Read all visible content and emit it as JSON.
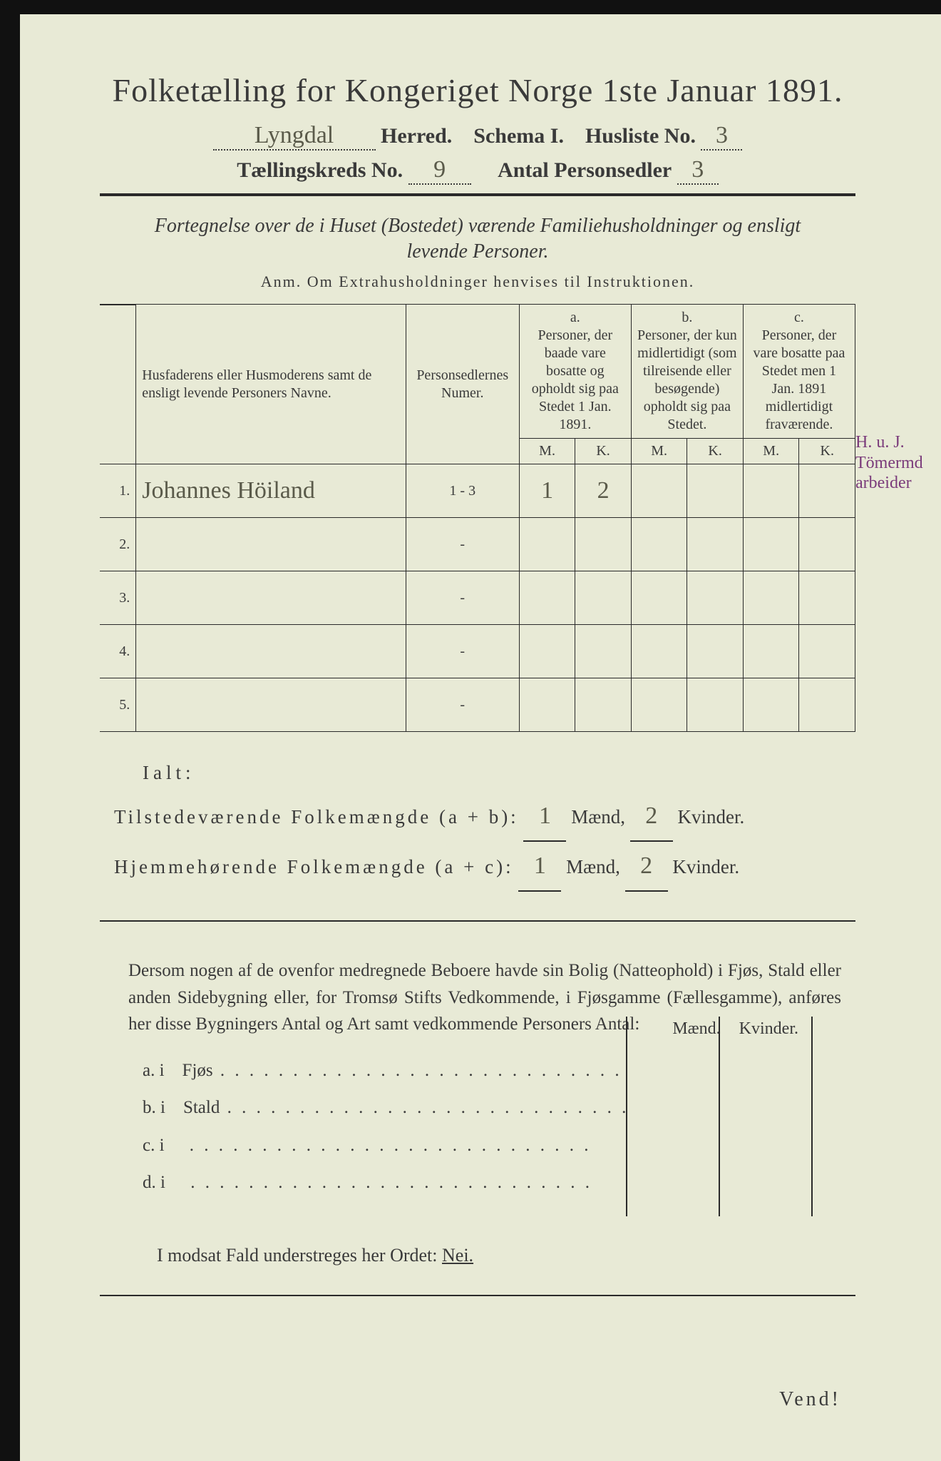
{
  "title": "Folketælling for Kongeriget Norge 1ste Januar 1891.",
  "header": {
    "herred_value": "Lyngdal",
    "herred_label": "Herred.",
    "schema_label": "Schema I.",
    "husliste_label": "Husliste No.",
    "husliste_value": "3",
    "kreds_label": "Tællingskreds No.",
    "kreds_value": "9",
    "antal_label": "Antal Personsedler",
    "antal_value": "3"
  },
  "subtitle": "Fortegnelse over de i Huset (Bostedet) værende Familiehusholdninger og ensligt levende Personer.",
  "anm": "Anm. Om Extrahusholdninger henvises til Instruktionen.",
  "columns": {
    "name_head": "Husfaderens eller Husmoderens samt de ensligt levende Personers Navne.",
    "numer_head": "Personsedlernes Numer.",
    "a_label": "a.",
    "a_text": "Personer, der baade vare bosatte og opholdt sig paa Stedet 1 Jan. 1891.",
    "b_label": "b.",
    "b_text": "Personer, der kun midlertidigt (som tilreisende eller besøgende) opholdt sig paa Stedet.",
    "c_label": "c.",
    "c_text": "Personer, der vare bosatte paa Stedet men 1 Jan. 1891 midlertidigt fraværende.",
    "m": "M.",
    "k": "K."
  },
  "rows": [
    {
      "n": "1.",
      "name": "Johannes Höiland",
      "numer": "1 - 3",
      "am": "1",
      "ak": "2",
      "bm": "",
      "bk": "",
      "cm": "",
      "ck": ""
    },
    {
      "n": "2.",
      "name": "",
      "numer": "-",
      "am": "",
      "ak": "",
      "bm": "",
      "bk": "",
      "cm": "",
      "ck": ""
    },
    {
      "n": "3.",
      "name": "",
      "numer": "-",
      "am": "",
      "ak": "",
      "bm": "",
      "bk": "",
      "cm": "",
      "ck": ""
    },
    {
      "n": "4.",
      "name": "",
      "numer": "-",
      "am": "",
      "ak": "",
      "bm": "",
      "bk": "",
      "cm": "",
      "ck": ""
    },
    {
      "n": "5.",
      "name": "",
      "numer": "-",
      "am": "",
      "ak": "",
      "bm": "",
      "bk": "",
      "cm": "",
      "ck": ""
    }
  ],
  "margin_note": {
    "line1": "H. u. J.",
    "line2": "Tömermd",
    "line3": "arbeider"
  },
  "totals": {
    "ialt": "Ialt:",
    "line1_label": "Tilstedeværende Folkemængde (a + b):",
    "line2_label": "Hjemmehørende Folkemængde (a + c):",
    "maend": "Mænd,",
    "kvinder": "Kvinder.",
    "v1m": "1",
    "v1k": "2",
    "v2m": "1",
    "v2k": "2"
  },
  "body_para": "Dersom nogen af de ovenfor medregnede Beboere havde sin Bolig (Natteophold) i Fjøs, Stald eller anden Sidebygning eller, for Tromsø Stifts Vedkommende, i Fjøsgamme (Fællesgamme), anføres her disse Bygningers Antal og Art samt vedkommende Personers Antal:",
  "aux": {
    "maend": "Mænd.",
    "kvinder": "Kvinder.",
    "rows": [
      {
        "l": "a.  i",
        "t": "Fjøs"
      },
      {
        "l": "b.  i",
        "t": "Stald"
      },
      {
        "l": "c.  i",
        "t": ""
      },
      {
        "l": "d.  i",
        "t": ""
      }
    ]
  },
  "nei_line": "I modsat Fald understreges her Ordet:",
  "nei_word": "Nei.",
  "vend": "Vend!",
  "colors": {
    "paper": "#e8ead6",
    "ink": "#3a3a3a",
    "annotation": "#7a3a7a"
  }
}
